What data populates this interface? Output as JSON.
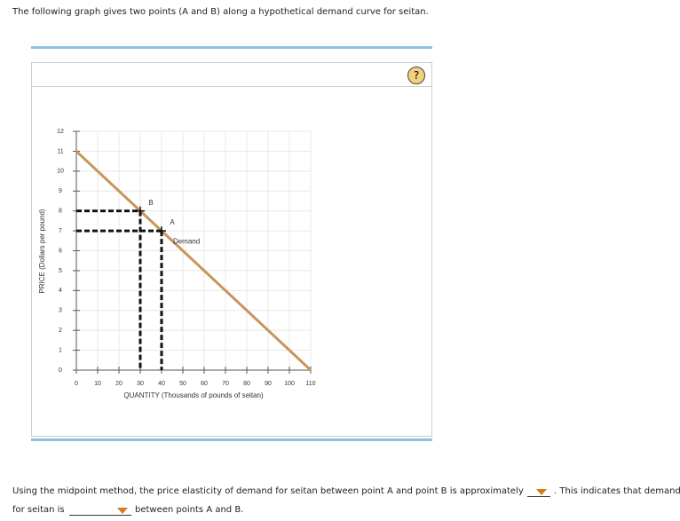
{
  "header": {
    "text": "The following graph gives two points (A and B) along a hypothetical demand curve for seitan."
  },
  "help": "?",
  "chart_data": {
    "type": "line",
    "xlabel": "QUANTITY (Thousands of pounds of seitan)",
    "ylabel": "PRICE (Dollars per pound)",
    "xlim": [
      0,
      110
    ],
    "ylim": [
      0,
      12
    ],
    "xticks": [
      0,
      10,
      20,
      30,
      40,
      50,
      60,
      70,
      80,
      90,
      100,
      110
    ],
    "yticks": [
      0,
      1,
      2,
      3,
      4,
      5,
      6,
      7,
      8,
      9,
      10,
      11,
      12
    ],
    "grid": true,
    "series": [
      {
        "name": "Demand",
        "color": "#c8955b",
        "x": [
          0,
          110
        ],
        "values": [
          11,
          0
        ]
      }
    ],
    "points": [
      {
        "label": "B",
        "x": 30,
        "y": 8
      },
      {
        "label": "A",
        "x": 40,
        "y": 7
      }
    ]
  },
  "question": {
    "part1": "Using the midpoint method, the price elasticity of demand for seitan between point A and point B is approximately",
    "part2": ". This indicates that demand",
    "part3": "for seitan is",
    "part4": "between points A and B."
  }
}
